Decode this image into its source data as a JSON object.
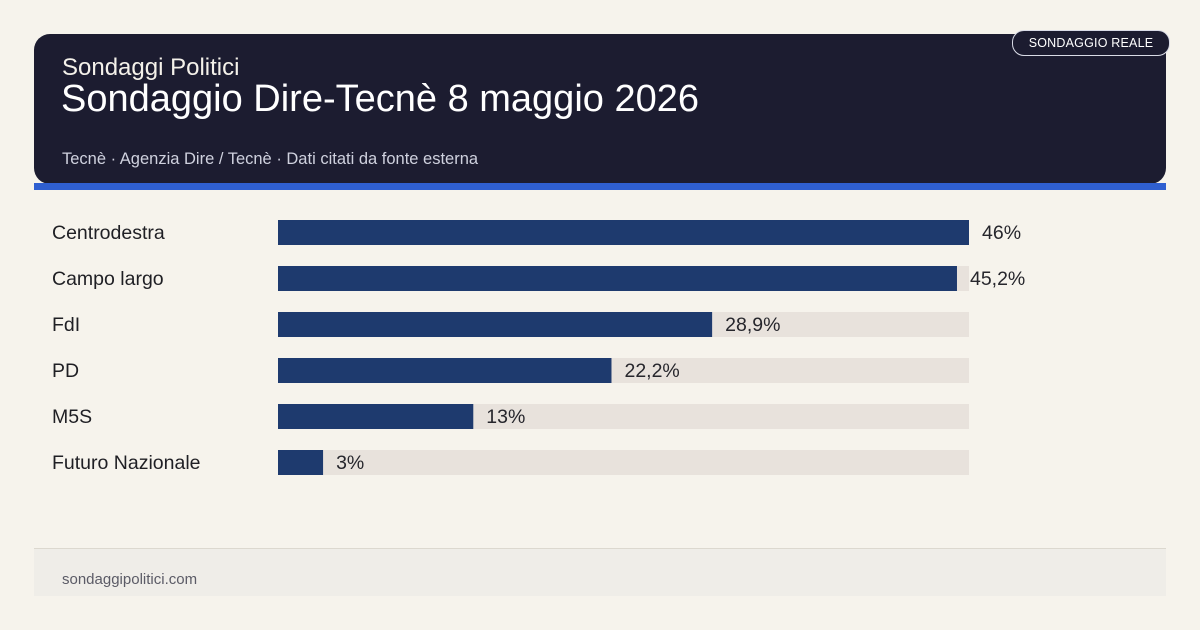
{
  "header": {
    "brand": "Sondaggi Politici",
    "title": "Sondaggio Dire-Tecnè 8 maggio 2026",
    "subtitle": "Tecnè · Agenzia Dire / Tecnè · Dati citati da fonte esterna",
    "badge": "SONDAGGIO REALE"
  },
  "footer": {
    "site": "sondaggipolitici.com"
  },
  "colors": {
    "bar": "#1e3a6e",
    "track": "#e8e2dc",
    "accent": "#2f5fd0",
    "header_bg": "#1c1c30"
  },
  "chart_data": {
    "type": "bar",
    "orientation": "horizontal",
    "categories": [
      "Centrodestra",
      "Campo largo",
      "FdI",
      "PD",
      "M5S",
      "Futuro Nazionale"
    ],
    "values": [
      46,
      45.2,
      28.9,
      22.2,
      13,
      3
    ],
    "value_labels": [
      "46%",
      "45,2%",
      "28,9%",
      "22,2%",
      "13%",
      "3%"
    ],
    "xlim": [
      0,
      46
    ],
    "grid": false,
    "title": "",
    "xlabel": "",
    "ylabel": ""
  }
}
